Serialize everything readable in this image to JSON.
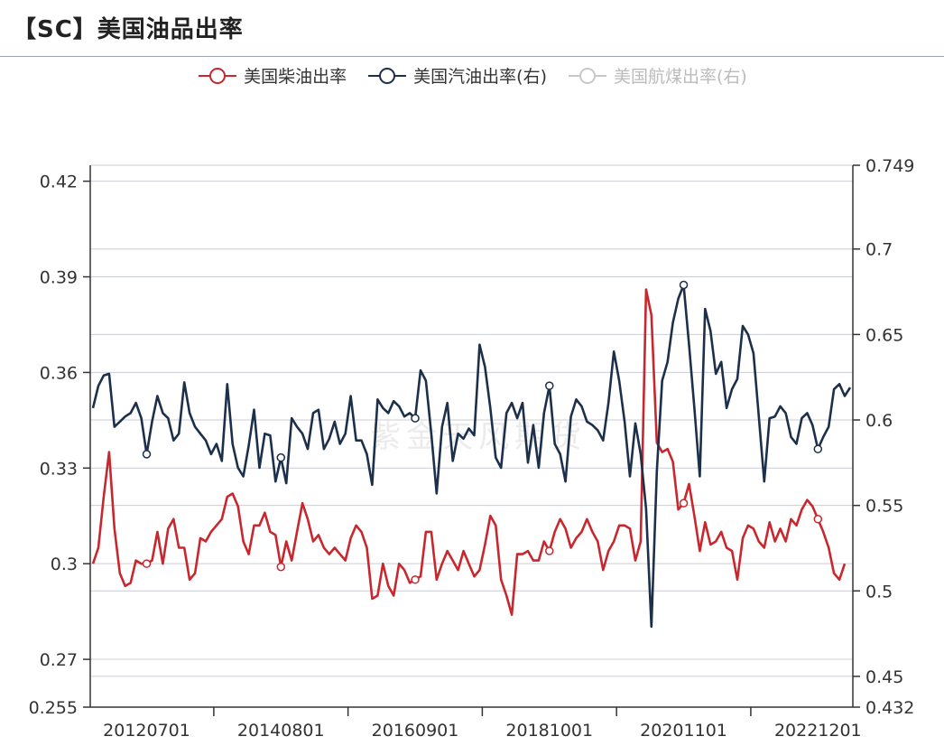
{
  "title": "【SC】美国油品出率",
  "watermark": "紫金天风期货",
  "legend": [
    {
      "label": "美国柴油出率",
      "color": "#c8272d",
      "active": true
    },
    {
      "label": "美国汽油出率(右)",
      "color": "#1c2f4b",
      "active": true
    },
    {
      "label": "美国航煤出率(右)",
      "color": "#c8c8c8",
      "active": false
    }
  ],
  "chart_data": {
    "type": "line",
    "x_tick_labels": [
      "20120701",
      "20140801",
      "20160901",
      "20181001",
      "20201101",
      "20221201"
    ],
    "left_axis": {
      "ylim": [
        0.255,
        0.425
      ],
      "ticks": [
        "0.255",
        "0.27",
        "0.3",
        "0.33",
        "0.36",
        "0.39",
        "0.42"
      ]
    },
    "right_axis": {
      "ylim": [
        0.432,
        0.749
      ],
      "ticks": [
        "0.432",
        "0.45",
        "0.5",
        "0.55",
        "0.6",
        "0.65",
        "0.7",
        "0.749"
      ]
    },
    "grid": true,
    "legend_position": "top",
    "series": [
      {
        "name": "美国柴油出率",
        "axis": "left",
        "color": "#c8272d",
        "values": [
          0.3,
          0.305,
          0.321,
          0.335,
          0.311,
          0.297,
          0.293,
          0.294,
          0.301,
          0.3,
          0.3,
          0.301,
          0.31,
          0.3,
          0.311,
          0.314,
          0.305,
          0.305,
          0.295,
          0.297,
          0.308,
          0.307,
          0.31,
          0.312,
          0.314,
          0.321,
          0.322,
          0.318,
          0.307,
          0.303,
          0.312,
          0.312,
          0.316,
          0.31,
          0.309,
          0.299,
          0.307,
          0.301,
          0.31,
          0.319,
          0.314,
          0.307,
          0.309,
          0.305,
          0.303,
          0.305,
          0.303,
          0.301,
          0.308,
          0.312,
          0.31,
          0.305,
          0.289,
          0.29,
          0.3,
          0.293,
          0.29,
          0.3,
          0.298,
          0.294,
          0.295,
          0.296,
          0.31,
          0.31,
          0.295,
          0.3,
          0.304,
          0.301,
          0.298,
          0.304,
          0.3,
          0.296,
          0.298,
          0.306,
          0.315,
          0.312,
          0.295,
          0.29,
          0.284,
          0.303,
          0.303,
          0.304,
          0.301,
          0.301,
          0.307,
          0.304,
          0.31,
          0.314,
          0.311,
          0.305,
          0.308,
          0.31,
          0.314,
          0.31,
          0.307,
          0.298,
          0.304,
          0.307,
          0.312,
          0.312,
          0.311,
          0.301,
          0.307,
          0.386,
          0.378,
          0.338,
          0.335,
          0.336,
          0.332,
          0.317,
          0.319,
          0.325,
          0.315,
          0.304,
          0.313,
          0.306,
          0.307,
          0.31,
          0.305,
          0.304,
          0.295,
          0.308,
          0.312,
          0.311,
          0.307,
          0.305,
          0.313,
          0.307,
          0.311,
          0.307,
          0.314,
          0.312,
          0.317,
          0.32,
          0.318,
          0.314,
          0.31,
          0.305,
          0.297,
          0.295,
          0.3
        ]
      },
      {
        "name": "美国汽油出率(右)",
        "axis": "right",
        "color": "#1c2f4b",
        "values": [
          0.607,
          0.62,
          0.626,
          0.627,
          0.596,
          0.599,
          0.602,
          0.604,
          0.61,
          0.601,
          0.58,
          0.599,
          0.614,
          0.604,
          0.601,
          0.588,
          0.592,
          0.622,
          0.604,
          0.596,
          0.592,
          0.588,
          0.58,
          0.586,
          0.576,
          0.621,
          0.586,
          0.572,
          0.567,
          0.585,
          0.606,
          0.572,
          0.592,
          0.591,
          0.564,
          0.578,
          0.563,
          0.601,
          0.596,
          0.592,
          0.583,
          0.604,
          0.606,
          0.583,
          0.589,
          0.599,
          0.586,
          0.592,
          0.614,
          0.588,
          0.588,
          0.58,
          0.562,
          0.612,
          0.607,
          0.604,
          0.611,
          0.608,
          0.602,
          0.604,
          0.601,
          0.629,
          0.623,
          0.592,
          0.557,
          0.596,
          0.61,
          0.576,
          0.592,
          0.589,
          0.595,
          0.591,
          0.644,
          0.631,
          0.607,
          0.578,
          0.572,
          0.604,
          0.61,
          0.601,
          0.61,
          0.575,
          0.597,
          0.572,
          0.604,
          0.62,
          0.586,
          0.58,
          0.564,
          0.602,
          0.612,
          0.608,
          0.599,
          0.597,
          0.594,
          0.588,
          0.61,
          0.64,
          0.623,
          0.599,
          0.567,
          0.598,
          0.58,
          0.548,
          0.479,
          0.57,
          0.623,
          0.634,
          0.657,
          0.671,
          0.679,
          0.644,
          0.607,
          0.567,
          0.665,
          0.652,
          0.627,
          0.634,
          0.607,
          0.618,
          0.624,
          0.655,
          0.65,
          0.639,
          0.602,
          0.564,
          0.601,
          0.602,
          0.608,
          0.604,
          0.59,
          0.586,
          0.601,
          0.604,
          0.597,
          0.583,
          0.59,
          0.596,
          0.618,
          0.621,
          0.614,
          0.619
        ]
      }
    ]
  }
}
